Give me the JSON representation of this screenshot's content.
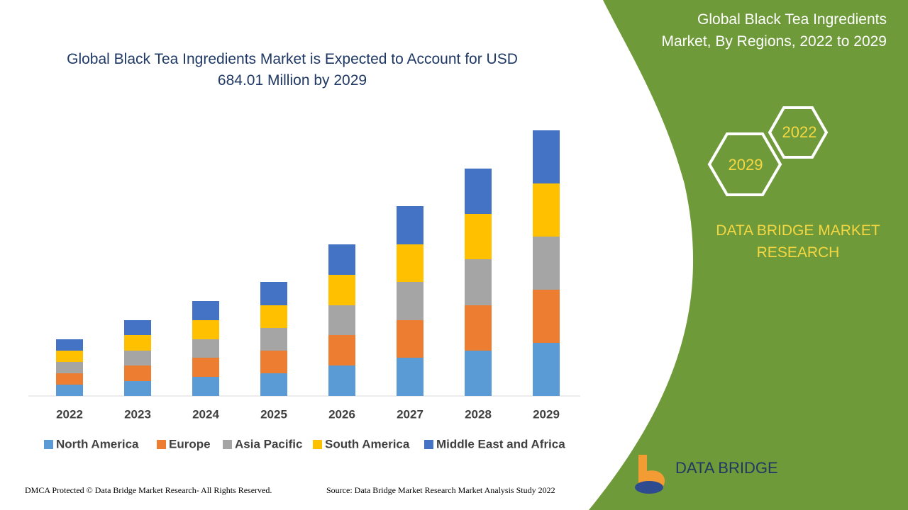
{
  "chart_data": {
    "type": "bar",
    "stacked": true,
    "title": "Global Black Tea Ingredients Market is Expected to Account for USD 684.01 Million by 2029",
    "categories": [
      "2022",
      "2023",
      "2024",
      "2025",
      "2026",
      "2027",
      "2028",
      "2029"
    ],
    "series": [
      {
        "name": "North America",
        "color": "#5b9bd5",
        "values": [
          16,
          21,
          27,
          32,
          43,
          54,
          64,
          75
        ]
      },
      {
        "name": "Europe",
        "color": "#ed7d31",
        "values": [
          16,
          22,
          27,
          32,
          43,
          53,
          64,
          75
        ]
      },
      {
        "name": "Asia Pacific",
        "color": "#a5a5a5",
        "values": [
          16,
          21,
          26,
          32,
          42,
          54,
          65,
          75
        ]
      },
      {
        "name": "South America",
        "color": "#ffc000",
        "values": [
          16,
          22,
          27,
          32,
          43,
          53,
          64,
          75
        ]
      },
      {
        "name": "Middle East and Africa",
        "color": "#4472c4",
        "values": [
          16,
          21,
          27,
          33,
          43,
          54,
          64,
          75
        ]
      }
    ]
  },
  "side_panel": {
    "title": "Global Black Tea Ingredients Market, By Regions, 2022 to 2029",
    "hex_labels": [
      "2022",
      "2029"
    ],
    "brand": "DATA BRIDGE MARKET RESEARCH"
  },
  "footer": {
    "copyright": "DMCA Protected © Data Bridge Market Research- All Rights Reserved.",
    "source": "Source: Data Bridge Market Research Market Analysis Study 2022"
  },
  "logo": {
    "name": "DATA BRIDGE"
  }
}
